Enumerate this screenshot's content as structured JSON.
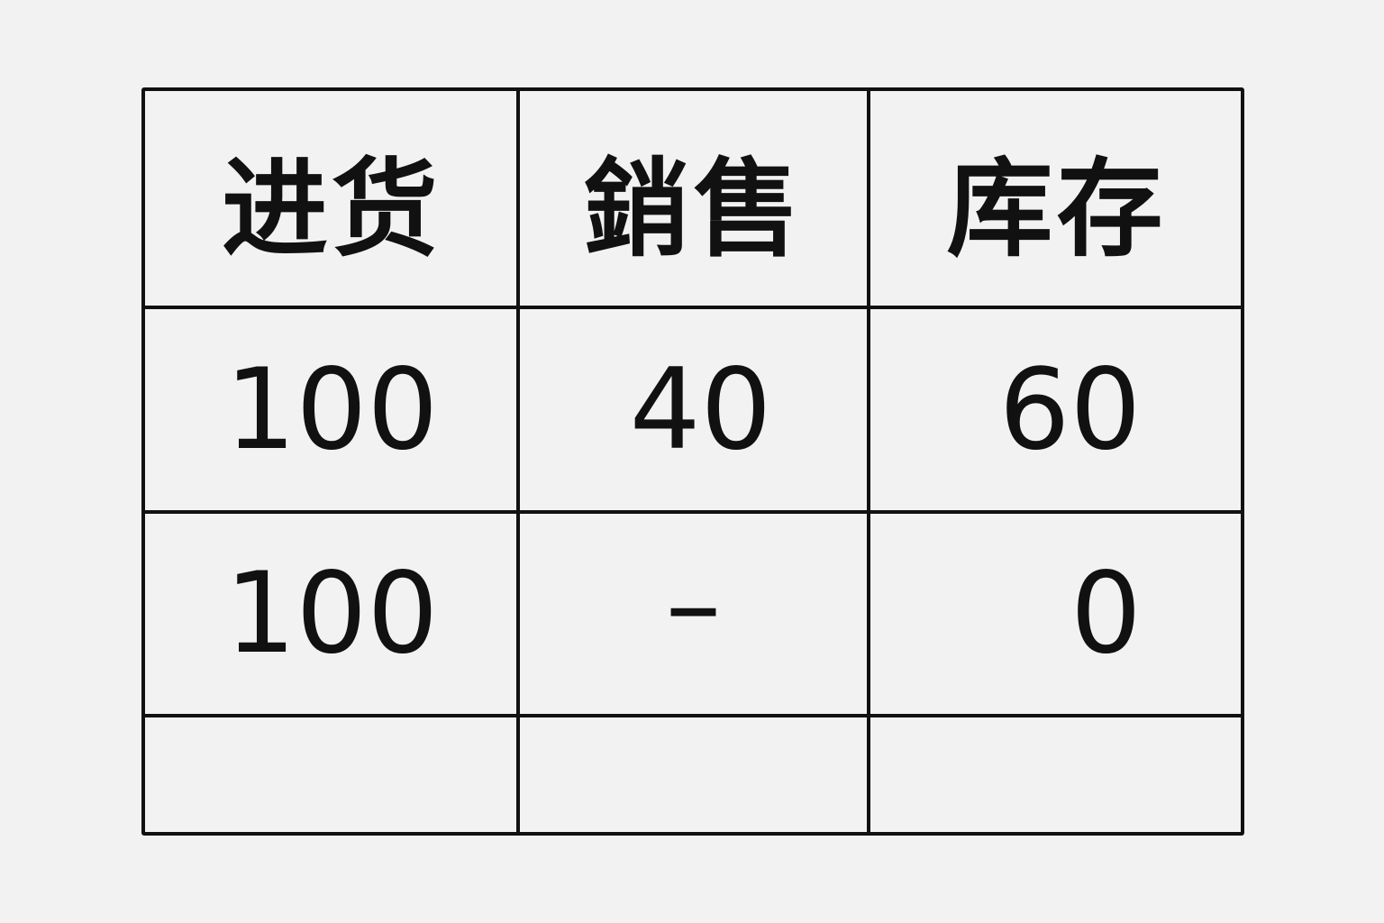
{
  "table": {
    "headers": [
      "进货",
      "銷售",
      "库存"
    ],
    "rows": [
      [
        "100",
        "40",
        "60"
      ],
      [
        "100",
        "–",
        "0"
      ],
      [
        "",
        "",
        ""
      ]
    ]
  }
}
